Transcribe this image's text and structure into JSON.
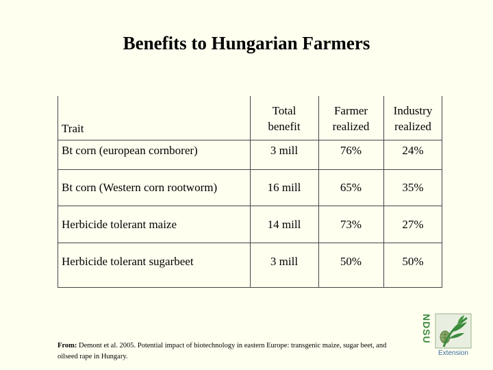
{
  "title": "Benefits to Hungarian Farmers",
  "table": {
    "headers": {
      "trait": "Trait",
      "total_1": "Total",
      "total_2": "benefit",
      "farmer_1": "Farmer",
      "farmer_2": "realized",
      "industry_1": "Industry",
      "industry_2": "realized"
    },
    "rows": [
      {
        "trait": "Bt corn (european cornborer)",
        "total": "3 mill",
        "farmer": "76%",
        "industry": "24%"
      },
      {
        "trait": "Bt corn (Western corn rootworm)",
        "total": "16 mill",
        "farmer": "65%",
        "industry": "35%"
      },
      {
        "trait": "Herbicide tolerant maize",
        "total": "14 mill",
        "farmer": "73%",
        "industry": "27%"
      },
      {
        "trait": "Herbicide tolerant sugarbeet",
        "total": "3 mill",
        "farmer": "50%",
        "industry": "50%"
      }
    ]
  },
  "citation": {
    "label": "From:",
    "text": " Demont et al. 2005. Potential impact of biotechnology in eastern Europe: transgenic maize, sugar beet, and oilseed rape in Hungary."
  },
  "logo": {
    "text": "NDSU",
    "subtext": "Extension",
    "color_green": "#3b8a3e",
    "color_blue": "#3b6e9e"
  }
}
